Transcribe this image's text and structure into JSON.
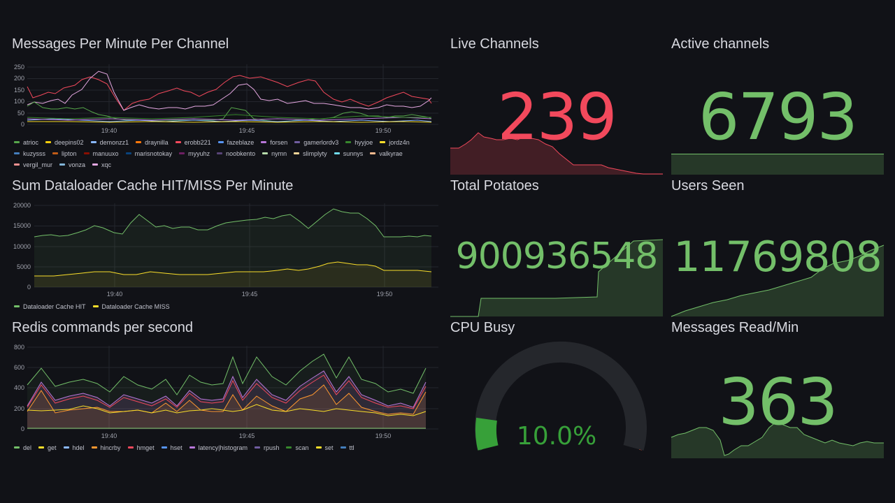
{
  "panels": {
    "messages": {
      "title": "Messages Per Minute Per Channel",
      "y_ticks": [
        "250",
        "200",
        "150",
        "100",
        "50",
        "0"
      ],
      "x_ticks": [
        "19:40",
        "19:45",
        "19:50"
      ],
      "legend": [
        {
          "name": "atrioc",
          "color": "#56a64b"
        },
        {
          "name": "deepins02",
          "color": "#f2cc0c"
        },
        {
          "name": "demonzz1",
          "color": "#8ab8ff"
        },
        {
          "name": "draynilla",
          "color": "#ff780a"
        },
        {
          "name": "erobb221",
          "color": "#f2495c"
        },
        {
          "name": "fazeblaze",
          "color": "#5794f2"
        },
        {
          "name": "forsen",
          "color": "#b877d9"
        },
        {
          "name": "gamerlordv3",
          "color": "#705da0"
        },
        {
          "name": "hyyjoe",
          "color": "#37872d"
        },
        {
          "name": "jordz4n",
          "color": "#fade2a"
        },
        {
          "name": "kuzysss",
          "color": "#447ebc"
        },
        {
          "name": "lipton",
          "color": "#c15c17"
        },
        {
          "name": "manuuxo",
          "color": "#890f02"
        },
        {
          "name": "marisnotokay",
          "color": "#0a437c"
        },
        {
          "name": "myyuhz",
          "color": "#6d1f62"
        },
        {
          "name": "noobkento",
          "color": "#584477"
        },
        {
          "name": "nymn",
          "color": "#b7dbab"
        },
        {
          "name": "slimplyty",
          "color": "#f4d598"
        },
        {
          "name": "sunnys",
          "color": "#70dbed"
        },
        {
          "name": "valkyrae",
          "color": "#f9ba8f"
        },
        {
          "name": "vergil_mur",
          "color": "#f29191"
        },
        {
          "name": "vonza",
          "color": "#82b5d8"
        },
        {
          "name": "xqc",
          "color": "#e5a8e2"
        }
      ]
    },
    "cache": {
      "title": "Sum Dataloader Cache HIT/MISS Per Minute",
      "y_ticks": [
        "20000",
        "15000",
        "10000",
        "5000",
        "0"
      ],
      "x_ticks": [
        "19:40",
        "19:45",
        "19:50"
      ],
      "legend": [
        {
          "name": "Dataloader Cache HIT",
          "color": "#73bf69"
        },
        {
          "name": "Dataloader Cache MISS",
          "color": "#fade2a"
        }
      ]
    },
    "redis": {
      "title": "Redis commands per second",
      "y_ticks": [
        "800",
        "600",
        "400",
        "200",
        "0"
      ],
      "x_ticks": [
        "19:40",
        "19:45",
        "19:50"
      ],
      "legend": [
        {
          "name": "del",
          "color": "#73bf69"
        },
        {
          "name": "get",
          "color": "#fade2a"
        },
        {
          "name": "hdel",
          "color": "#8ab8ff"
        },
        {
          "name": "hincrby",
          "color": "#ff9830"
        },
        {
          "name": "hmget",
          "color": "#f2495c"
        },
        {
          "name": "hset",
          "color": "#5794f2"
        },
        {
          "name": "latency|histogram",
          "color": "#b877d9"
        },
        {
          "name": "rpush",
          "color": "#705da0"
        },
        {
          "name": "scan",
          "color": "#37872d"
        },
        {
          "name": "set",
          "color": "#fade2a"
        },
        {
          "name": "ttl",
          "color": "#447ebc"
        }
      ]
    },
    "live_channels": {
      "title": "Live Channels",
      "value": "239",
      "color": "#f2495c"
    },
    "active_channels": {
      "title": "Active channels",
      "value": "6793",
      "color": "#73bf69"
    },
    "total_potatoes": {
      "title": "Total Potatoes",
      "value": "900936548",
      "color": "#73bf69"
    },
    "users_seen": {
      "title": "Users Seen",
      "value": "11769808",
      "color": "#73bf69"
    },
    "cpu_busy": {
      "title": "CPU Busy",
      "value": "10.0%",
      "percent": 10,
      "color": "#37a039"
    },
    "messages_read": {
      "title": "Messages Read/Min",
      "value": "363",
      "color": "#73bf69"
    }
  }
}
